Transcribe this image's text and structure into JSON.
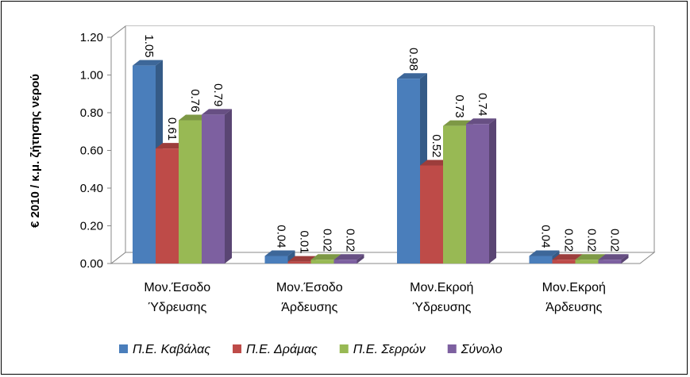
{
  "chart_data": {
    "type": "bar",
    "ylabel": "€ 2010 / κ.μ. ζήτησης νερού",
    "ylim": [
      0,
      1.2
    ],
    "yticks": [
      "0.00",
      "0.20",
      "0.40",
      "0.60",
      "0.80",
      "1.00",
      "1.20"
    ],
    "grid": true,
    "legend_position": "bottom",
    "categories": [
      [
        "Μον.Έσοδο",
        "Ύδρευσης"
      ],
      [
        "Μον.Έσοδο",
        "Άρδευσης"
      ],
      [
        "Μον.Εκροή",
        "Ύδρευσης"
      ],
      [
        "Μον.Εκροή",
        "Άρδευσης"
      ]
    ],
    "series": [
      {
        "name": "Π.Ε. Καβάλας",
        "color": "#4a7ebb",
        "values": [
          1.05,
          0.04,
          0.98,
          0.04
        ],
        "labels": [
          "1.05",
          "0.04",
          "0.98",
          "0.04"
        ]
      },
      {
        "name": "Π.Ε. Δράμας",
        "color": "#be4b48",
        "values": [
          0.61,
          0.01,
          0.52,
          0.02
        ],
        "labels": [
          "0.61",
          "0.01",
          "0.52",
          "0.02"
        ]
      },
      {
        "name": "Π.Ε. Σερρών",
        "color": "#98b954",
        "values": [
          0.76,
          0.02,
          0.73,
          0.02
        ],
        "labels": [
          "0.76",
          "0.02",
          "0.73",
          "0.02"
        ]
      },
      {
        "name": "Σύνολο",
        "color": "#7d60a0",
        "values": [
          0.79,
          0.02,
          0.74,
          0.02
        ],
        "labels": [
          "0.79",
          "0.02",
          "0.74",
          "0.02"
        ]
      }
    ]
  }
}
